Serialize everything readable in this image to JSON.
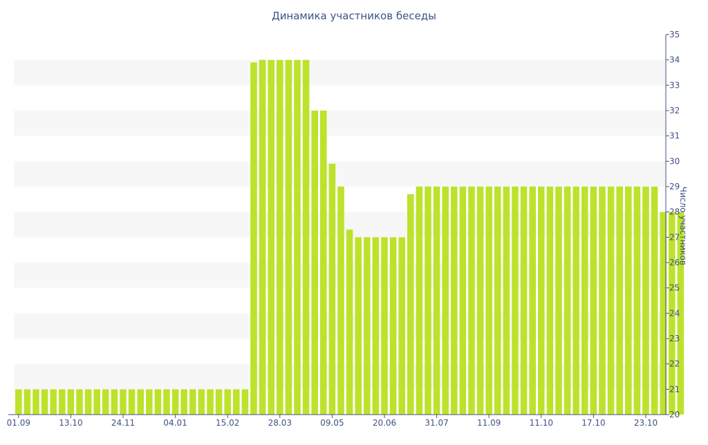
{
  "chart_data": {
    "type": "bar",
    "title": "Динамика участников беседы",
    "xlabel": "",
    "ylabel": "Число участников",
    "ylim": [
      20,
      35
    ],
    "y_ticks": [
      20,
      21,
      22,
      23,
      24,
      25,
      26,
      27,
      28,
      29,
      30,
      31,
      32,
      33,
      34,
      35
    ],
    "x_tick_labels": [
      "01.09",
      "13.10",
      "24.11",
      "04.01",
      "15.02",
      "28.03",
      "09.05",
      "20.06",
      "31.07",
      "11.09",
      "11.10",
      "17.10",
      "23.10"
    ],
    "grid": "horizontal bands",
    "bar_color": "#bde22c",
    "band_color": "#f7f7f7",
    "axis_color": "#3f5187",
    "values": [
      21,
      21,
      21,
      21,
      21,
      21,
      21,
      21,
      21,
      21,
      21,
      21,
      21,
      21,
      21,
      21,
      21,
      21,
      21,
      21,
      21,
      21,
      21,
      21,
      21,
      21,
      21,
      33.9,
      34,
      34,
      34,
      34,
      34,
      34,
      32,
      32,
      29.9,
      29,
      27.3,
      27,
      27,
      27,
      27,
      27,
      27,
      28.7,
      29,
      29,
      29,
      29,
      29,
      29,
      29,
      29,
      29,
      29,
      29,
      29,
      29,
      29,
      29,
      29,
      29,
      29,
      29,
      29,
      29,
      29,
      29,
      29,
      29,
      29,
      29,
      29,
      28,
      28,
      28
    ]
  }
}
